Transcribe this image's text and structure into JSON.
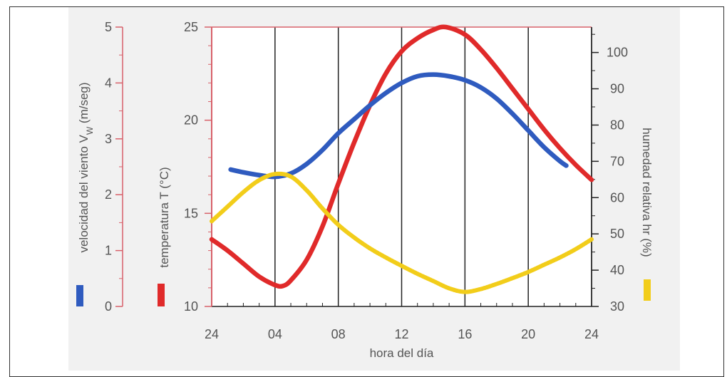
{
  "chart_data": {
    "type": "line",
    "x_label": "hora del día",
    "x_ticks": [
      "24",
      "04",
      "08",
      "12",
      "16",
      "20",
      "24"
    ],
    "x_range": [
      0,
      24
    ],
    "axes": {
      "wind": {
        "label": "velocidad del viento V_W (m/seg)",
        "label_main": "velocidad del viento V",
        "label_sub": "W",
        "label_unit": " (m/seg)",
        "range": [
          0,
          5
        ],
        "ticks": [
          "0",
          "1",
          "2",
          "3",
          "4",
          "5"
        ],
        "color": "#2f5bbf"
      },
      "temp": {
        "label": "temperatura T  (°C)",
        "range": [
          10,
          25
        ],
        "ticks": [
          "10",
          "15",
          "20",
          "25"
        ],
        "color": "#e02a2a"
      },
      "humidity": {
        "label": "humedad relativa hr (%)",
        "range": [
          30,
          107
        ],
        "ticks": [
          "30",
          "40",
          "50",
          "60",
          "70",
          "80",
          "90",
          "100"
        ],
        "color": "#f2cd1a"
      }
    },
    "series": [
      {
        "axis": "temp",
        "color": "#e02a2a",
        "points": [
          [
            0,
            13.6
          ],
          [
            1,
            13.0
          ],
          [
            2,
            12.3
          ],
          [
            3,
            11.6
          ],
          [
            4,
            11.15
          ],
          [
            4.5,
            11.1
          ],
          [
            5,
            11.4
          ],
          [
            6,
            12.5
          ],
          [
            7,
            14.3
          ],
          [
            8,
            16.6
          ],
          [
            9,
            18.8
          ],
          [
            10,
            20.8
          ],
          [
            11,
            22.5
          ],
          [
            12,
            23.7
          ],
          [
            13,
            24.4
          ],
          [
            14,
            24.85
          ],
          [
            14.8,
            25.0
          ],
          [
            16,
            24.6
          ],
          [
            17,
            23.8
          ],
          [
            18,
            22.8
          ],
          [
            19,
            21.7
          ],
          [
            20,
            20.6
          ],
          [
            21,
            19.5
          ],
          [
            22,
            18.5
          ],
          [
            23,
            17.6
          ],
          [
            24,
            16.8
          ]
        ]
      },
      {
        "axis": "wind",
        "color": "#2f5bbf",
        "points": [
          [
            1.2,
            2.45
          ],
          [
            2,
            2.4
          ],
          [
            3,
            2.35
          ],
          [
            4,
            2.32
          ],
          [
            5,
            2.38
          ],
          [
            6,
            2.55
          ],
          [
            7,
            2.8
          ],
          [
            8,
            3.1
          ],
          [
            9,
            3.35
          ],
          [
            10,
            3.6
          ],
          [
            11,
            3.82
          ],
          [
            12,
            4.0
          ],
          [
            13,
            4.12
          ],
          [
            14,
            4.15
          ],
          [
            15,
            4.12
          ],
          [
            16,
            4.05
          ],
          [
            17,
            3.92
          ],
          [
            18,
            3.72
          ],
          [
            19,
            3.45
          ],
          [
            20,
            3.15
          ],
          [
            21,
            2.85
          ],
          [
            22,
            2.6
          ],
          [
            22.4,
            2.52
          ]
        ]
      },
      {
        "axis": "humidity",
        "color": "#f2cd1a",
        "points": [
          [
            0,
            53.5
          ],
          [
            1,
            57.5
          ],
          [
            2,
            61.5
          ],
          [
            3,
            64.8
          ],
          [
            4,
            66.5
          ],
          [
            5,
            65.8
          ],
          [
            6,
            62
          ],
          [
            7,
            57
          ],
          [
            8,
            52.5
          ],
          [
            9,
            49
          ],
          [
            10,
            46
          ],
          [
            11,
            43.5
          ],
          [
            12,
            41.2
          ],
          [
            13,
            39
          ],
          [
            14,
            37
          ],
          [
            15,
            35
          ],
          [
            16,
            34
          ],
          [
            17,
            34.8
          ],
          [
            18,
            36.2
          ],
          [
            19,
            37.8
          ],
          [
            20,
            39.5
          ],
          [
            21,
            41.5
          ],
          [
            22,
            43.5
          ],
          [
            23,
            45.8
          ],
          [
            24,
            48.5
          ]
        ]
      }
    ],
    "grid": {
      "vertical": true,
      "horizontal": false
    }
  }
}
